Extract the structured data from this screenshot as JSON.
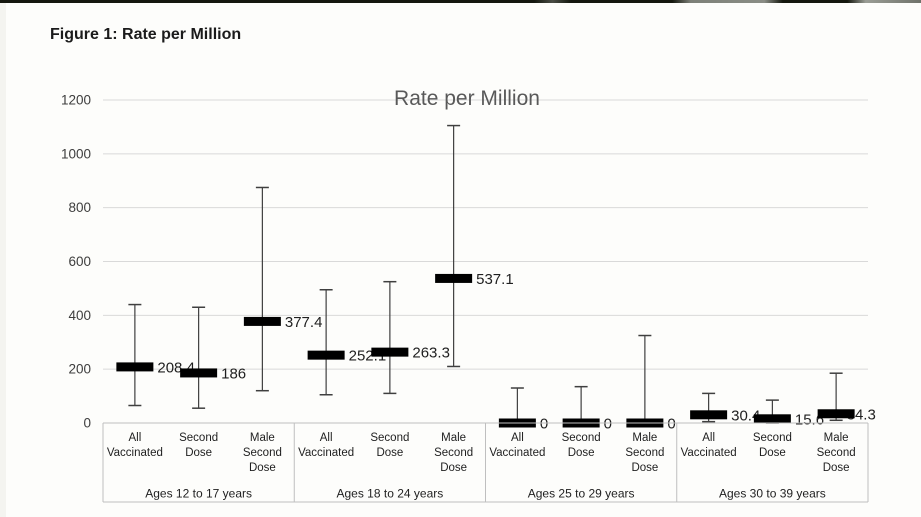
{
  "page": {
    "figure_heading": "Figure 1: Rate per Million"
  },
  "chart_data": {
    "type": "bar",
    "subtype": "floating-bars-with-error-whiskers",
    "title": "Rate per Million",
    "xlabel": "",
    "ylabel": "",
    "ylim": [
      0,
      1200
    ],
    "yticks": [
      0,
      200,
      400,
      600,
      800,
      1000,
      1200
    ],
    "grid": true,
    "legend": "none",
    "groups": [
      {
        "label": "Ages 12 to 17 years",
        "points": [
          {
            "category": "All Vaccinated",
            "category_lines": [
              "All",
              "Vaccinated"
            ],
            "value": 208.4,
            "value_label": "208.4",
            "whisker_low": 65,
            "whisker_high": 440
          },
          {
            "category": "Second Dose",
            "category_lines": [
              "Second",
              "Dose"
            ],
            "value": 186,
            "value_label": "186",
            "whisker_low": 55,
            "whisker_high": 430
          },
          {
            "category": "Male Second Dose",
            "category_lines": [
              "Male",
              "Second",
              "Dose"
            ],
            "value": 377.4,
            "value_label": "377.4",
            "whisker_low": 120,
            "whisker_high": 875
          }
        ]
      },
      {
        "label": "Ages 18 to 24 years",
        "points": [
          {
            "category": "All Vaccinated",
            "category_lines": [
              "All",
              "Vaccinated"
            ],
            "value": 252.1,
            "value_label": "252.1",
            "whisker_low": 105,
            "whisker_high": 495
          },
          {
            "category": "Second Dose",
            "category_lines": [
              "Second",
              "Dose"
            ],
            "value": 263.3,
            "value_label": "263.3",
            "whisker_low": 110,
            "whisker_high": 525
          },
          {
            "category": "Male Second Dose",
            "category_lines": [
              "Male",
              "Second",
              "Dose"
            ],
            "value": 537.1,
            "value_label": "537.1",
            "whisker_low": 210,
            "whisker_high": 1105
          }
        ]
      },
      {
        "label": "Ages 25 to 29 years",
        "points": [
          {
            "category": "All Vaccinated",
            "category_lines": [
              "All",
              "Vaccinated"
            ],
            "value": 0,
            "value_label": "0",
            "whisker_low": 0,
            "whisker_high": 130
          },
          {
            "category": "Second Dose",
            "category_lines": [
              "Second",
              "Dose"
            ],
            "value": 0,
            "value_label": "0",
            "whisker_low": 0,
            "whisker_high": 135
          },
          {
            "category": "Male Second Dose",
            "category_lines": [
              "Male",
              "Second",
              "Dose"
            ],
            "value": 0,
            "value_label": "0",
            "whisker_low": 0,
            "whisker_high": 325
          }
        ]
      },
      {
        "label": "Ages 30 to 39 years",
        "points": [
          {
            "category": "All Vaccinated",
            "category_lines": [
              "All",
              "Vaccinated"
            ],
            "value": 30.4,
            "value_label": "30.4",
            "whisker_low": 5,
            "whisker_high": 110
          },
          {
            "category": "Second Dose",
            "category_lines": [
              "Second",
              "Dose"
            ],
            "value": 15.6,
            "value_label": "15.6",
            "whisker_low": 0,
            "whisker_high": 85
          },
          {
            "category": "Male Second Dose",
            "category_lines": [
              "Male",
              "Second",
              "Dose"
            ],
            "value": 34.3,
            "value_label": "34.3",
            "whisker_low": 10,
            "whisker_high": 185,
            "label_offset_x": -12
          }
        ]
      }
    ],
    "colors": {
      "bar": "#000000",
      "whisker": "#3f3f3f",
      "gridline": "#d9d9d9",
      "table_border": "#bfbfbf",
      "title": "#595959",
      "axis_text": "#3d3d3d",
      "label_text": "#1f1f1f"
    }
  }
}
